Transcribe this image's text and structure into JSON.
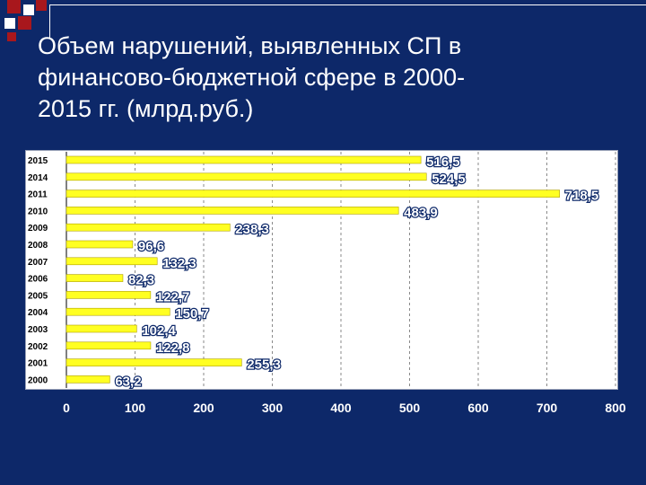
{
  "slide": {
    "title_lines": [
      "Объем нарушений, выявленных СП в",
      "финансово-бюджетной сфере в 2000-",
      "2015 гг. (млрд.руб.)"
    ]
  },
  "colors": {
    "background": "#0d2869",
    "bar": "#ffff22",
    "accent_red": "#a8171c",
    "label": "#ffffff",
    "year_label": "#000000"
  },
  "chart_data": {
    "type": "bar",
    "orientation": "horizontal",
    "categories": [
      "2015",
      "2014",
      "2011",
      "2010",
      "2009",
      "2008",
      "2007",
      "2006",
      "2005",
      "2004",
      "2003",
      "2002",
      "2001",
      "2000"
    ],
    "values": [
      516.5,
      524.5,
      718.5,
      483.9,
      238.3,
      96.6,
      132.3,
      82.3,
      122.7,
      150.7,
      102.4,
      122.8,
      255.3,
      63.2
    ],
    "value_labels": [
      "516,5",
      "524,5",
      "718,5",
      "483,9",
      "238,3",
      "96,6",
      "132,3",
      "82,3",
      "122,7",
      "150,7",
      "102,4",
      "122,8",
      "255,3",
      "63,2"
    ],
    "x_ticks": [
      "0",
      "100",
      "200",
      "300",
      "400",
      "500",
      "600",
      "700",
      "800"
    ],
    "xlim": [
      0,
      800
    ],
    "grid": "vertical dashed",
    "title": "Объем нарушений, выявленных СП в финансово-бюджетной сфере в 2000-2015 гг. (млрд.руб.)",
    "xlabel": "",
    "ylabel": ""
  }
}
